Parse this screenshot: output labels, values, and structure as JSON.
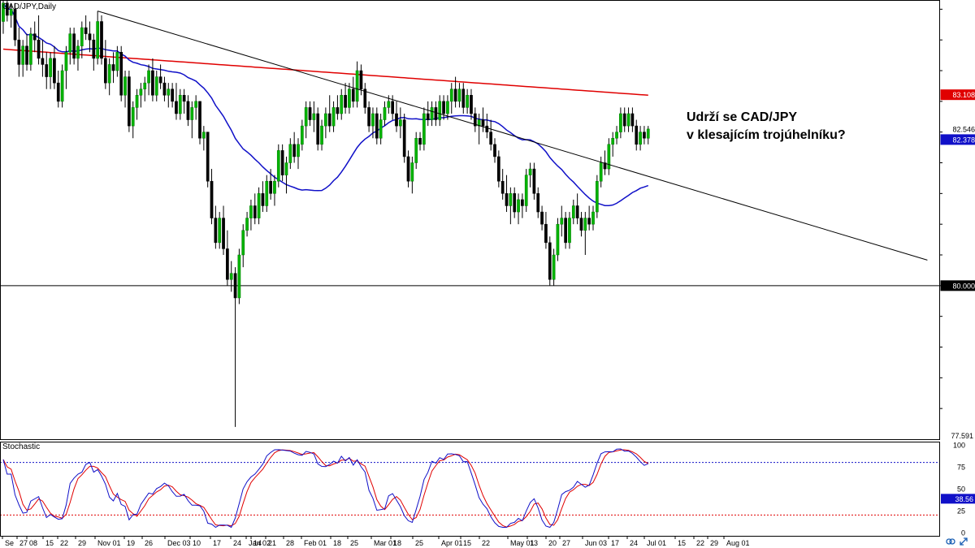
{
  "chart_data": {
    "type": "candlestick",
    "title": "CAD/JPY,Daily",
    "annotation": [
      "Udrží se CAD/JPY",
      "v klesajícím trojúhelníku?"
    ],
    "ylim": [
      77.5,
      84.65
    ],
    "yticks": [
      "77.591"
    ],
    "price_tags": [
      {
        "label": "83.108",
        "value": 83.108,
        "color": "#e00000",
        "text_color": "#ffffff"
      },
      {
        "label": "82.546",
        "value": 82.546,
        "color": "#ffffff",
        "text_color": "#000000"
      },
      {
        "label": "82.378",
        "value": 82.378,
        "color": "#1010c8",
        "text_color": "#ffffff"
      },
      {
        "label": "80.000",
        "value": 80.0,
        "color": "#000000",
        "text_color": "#ffffff"
      }
    ],
    "xticks": [
      "Se",
      "27",
      "08",
      "15",
      "22",
      "29",
      "Nov 01",
      "19",
      "26",
      "Dec 03",
      "10",
      "17",
      "24",
      "Jan 02",
      "14",
      "21",
      "28",
      "Feb 01",
      "18",
      "25",
      "Mar 01",
      "18",
      "25",
      "Apr 01",
      "15",
      "22",
      "May 01",
      "13",
      "20",
      "27",
      "Jun 03",
      "17",
      "24",
      "Jul 01",
      "15",
      "22",
      "29",
      "Aug 01"
    ],
    "horizontal_line": 80.0,
    "trendline": {
      "from": [
        24,
        84.47
      ],
      "to": [
        228,
        80.55
      ]
    },
    "candles": [
      [
        84.3,
        84.7,
        84.1,
        84.6
      ],
      [
        84.6,
        84.7,
        84.3,
        84.4
      ],
      [
        84.4,
        84.6,
        84.2,
        84.5
      ],
      [
        84.5,
        84.6,
        83.9,
        84.0
      ],
      [
        84.0,
        84.2,
        83.4,
        83.6
      ],
      [
        83.6,
        84.0,
        83.4,
        83.9
      ],
      [
        83.9,
        84.1,
        83.5,
        83.6
      ],
      [
        83.6,
        84.2,
        83.5,
        84.1
      ],
      [
        84.1,
        84.3,
        83.8,
        84.0
      ],
      [
        84.0,
        84.4,
        83.6,
        83.7
      ],
      [
        83.7,
        84.0,
        83.4,
        83.6
      ],
      [
        83.6,
        83.8,
        83.2,
        83.4
      ],
      [
        83.4,
        83.8,
        83.2,
        83.7
      ],
      [
        83.7,
        83.9,
        83.2,
        83.3
      ],
      [
        83.3,
        83.5,
        82.9,
        83.0
      ],
      [
        83.0,
        83.6,
        82.9,
        83.5
      ],
      [
        83.5,
        83.9,
        83.2,
        83.8
      ],
      [
        83.8,
        84.2,
        83.6,
        84.1
      ],
      [
        84.1,
        84.2,
        83.6,
        83.7
      ],
      [
        83.7,
        84.0,
        83.5,
        83.9
      ],
      [
        83.9,
        84.3,
        83.7,
        84.2
      ],
      [
        84.2,
        84.4,
        84.0,
        84.1
      ],
      [
        84.1,
        84.3,
        83.8,
        84.0
      ],
      [
        84.0,
        84.1,
        83.5,
        83.7
      ],
      [
        83.7,
        84.47,
        83.6,
        84.3
      ],
      [
        84.3,
        84.4,
        83.6,
        83.7
      ],
      [
        83.7,
        84.0,
        83.2,
        83.3
      ],
      [
        83.3,
        83.7,
        83.1,
        83.6
      ],
      [
        83.6,
        83.8,
        83.3,
        83.5
      ],
      [
        83.5,
        83.9,
        83.4,
        83.8
      ],
      [
        83.8,
        83.9,
        83.0,
        83.1
      ],
      [
        83.1,
        83.5,
        82.9,
        83.4
      ],
      [
        83.4,
        83.5,
        82.5,
        82.6
      ],
      [
        82.6,
        83.0,
        82.4,
        82.9
      ],
      [
        82.9,
        83.2,
        82.7,
        83.1
      ],
      [
        83.1,
        83.3,
        82.9,
        83.2
      ],
      [
        83.2,
        83.4,
        83.0,
        83.3
      ],
      [
        83.3,
        83.6,
        83.1,
        83.5
      ],
      [
        83.5,
        83.7,
        83.0,
        83.1
      ],
      [
        83.1,
        83.5,
        83.0,
        83.4
      ],
      [
        83.4,
        83.6,
        83.2,
        83.3
      ],
      [
        83.3,
        83.4,
        83.0,
        83.1
      ],
      [
        83.1,
        83.3,
        82.9,
        83.2
      ],
      [
        83.2,
        83.3,
        82.9,
        83.0
      ],
      [
        83.0,
        83.3,
        82.7,
        82.8
      ],
      [
        82.8,
        83.2,
        82.7,
        83.1
      ],
      [
        83.1,
        83.2,
        82.8,
        83.0
      ],
      [
        83.0,
        83.1,
        82.6,
        82.7
      ],
      [
        82.7,
        83.0,
        82.4,
        82.9
      ],
      [
        82.9,
        83.1,
        82.7,
        83.0
      ],
      [
        83.0,
        83.0,
        82.3,
        82.4
      ],
      [
        82.4,
        82.6,
        82.2,
        82.5
      ],
      [
        82.5,
        82.5,
        81.6,
        81.7
      ],
      [
        81.7,
        81.9,
        81.0,
        81.1
      ],
      [
        81.1,
        81.3,
        80.6,
        80.7
      ],
      [
        80.7,
        81.2,
        80.6,
        81.1
      ],
      [
        81.1,
        81.3,
        80.5,
        80.6
      ],
      [
        80.6,
        80.9,
        80.0,
        80.1
      ],
      [
        80.1,
        80.4,
        79.9,
        80.2
      ],
      [
        80.2,
        80.3,
        77.7,
        79.8
      ],
      [
        79.8,
        80.6,
        79.7,
        80.5
      ],
      [
        80.5,
        81.0,
        80.3,
        80.9
      ],
      [
        80.9,
        81.2,
        80.8,
        81.1
      ],
      [
        81.1,
        81.4,
        80.9,
        81.3
      ],
      [
        81.3,
        81.5,
        81.0,
        81.1
      ],
      [
        81.1,
        81.6,
        81.0,
        81.5
      ],
      [
        81.5,
        81.7,
        81.2,
        81.3
      ],
      [
        81.3,
        81.8,
        81.2,
        81.7
      ],
      [
        81.7,
        81.9,
        81.4,
        81.5
      ],
      [
        81.5,
        81.8,
        81.3,
        81.7
      ],
      [
        81.7,
        82.3,
        81.6,
        82.2
      ],
      [
        82.2,
        82.3,
        81.7,
        81.8
      ],
      [
        81.8,
        82.1,
        81.5,
        82.0
      ],
      [
        82.0,
        82.4,
        81.9,
        82.3
      ],
      [
        82.3,
        82.5,
        82.0,
        82.1
      ],
      [
        82.1,
        82.4,
        81.9,
        82.3
      ],
      [
        82.3,
        82.7,
        82.2,
        82.6
      ],
      [
        82.6,
        83.0,
        82.4,
        82.9
      ],
      [
        82.9,
        83.0,
        82.6,
        82.7
      ],
      [
        82.7,
        83.0,
        82.5,
        82.8
      ],
      [
        82.8,
        82.9,
        82.2,
        82.3
      ],
      [
        82.3,
        82.7,
        82.2,
        82.6
      ],
      [
        82.6,
        82.9,
        82.4,
        82.8
      ],
      [
        82.8,
        83.1,
        82.5,
        82.6
      ],
      [
        82.6,
        83.0,
        82.5,
        82.9
      ],
      [
        82.9,
        83.1,
        82.7,
        82.8
      ],
      [
        82.8,
        83.2,
        82.7,
        83.1
      ],
      [
        83.1,
        83.3,
        82.8,
        82.9
      ],
      [
        82.9,
        83.3,
        82.8,
        83.2
      ],
      [
        83.2,
        83.4,
        82.9,
        83.0
      ],
      [
        83.0,
        83.65,
        82.9,
        83.5
      ],
      [
        83.5,
        83.6,
        83.1,
        83.2
      ],
      [
        83.2,
        83.3,
        82.8,
        82.9
      ],
      [
        82.9,
        83.0,
        82.5,
        82.6
      ],
      [
        82.6,
        82.9,
        82.4,
        82.8
      ],
      [
        82.8,
        82.9,
        82.3,
        82.4
      ],
      [
        82.4,
        82.8,
        82.3,
        82.7
      ],
      [
        82.7,
        83.0,
        82.6,
        82.9
      ],
      [
        82.9,
        83.1,
        82.8,
        83.0
      ],
      [
        83.0,
        83.1,
        82.7,
        82.8
      ],
      [
        82.8,
        83.0,
        82.5,
        82.6
      ],
      [
        82.6,
        82.9,
        82.4,
        82.7
      ],
      [
        82.7,
        82.8,
        82.0,
        82.1
      ],
      [
        82.1,
        82.2,
        81.6,
        81.7
      ],
      [
        81.7,
        82.1,
        81.5,
        82.0
      ],
      [
        82.0,
        82.5,
        81.9,
        82.4
      ],
      [
        82.4,
        82.5,
        82.2,
        82.3
      ],
      [
        82.3,
        82.9,
        82.2,
        82.8
      ],
      [
        82.8,
        83.0,
        82.6,
        82.7
      ],
      [
        82.7,
        83.0,
        82.6,
        82.9
      ],
      [
        82.9,
        83.0,
        82.6,
        82.7
      ],
      [
        82.7,
        83.1,
        82.6,
        83.0
      ],
      [
        83.0,
        83.1,
        82.7,
        82.8
      ],
      [
        82.8,
        83.1,
        82.7,
        83.0
      ],
      [
        83.0,
        83.3,
        82.8,
        83.2
      ],
      [
        83.2,
        83.4,
        82.9,
        83.0
      ],
      [
        83.0,
        83.3,
        82.9,
        83.2
      ],
      [
        83.2,
        83.3,
        82.8,
        82.9
      ],
      [
        82.9,
        83.2,
        82.8,
        83.1
      ],
      [
        83.1,
        83.2,
        82.7,
        82.8
      ],
      [
        82.8,
        82.9,
        82.5,
        82.6
      ],
      [
        82.6,
        82.8,
        82.3,
        82.7
      ],
      [
        82.7,
        82.9,
        82.5,
        82.6
      ],
      [
        82.6,
        82.8,
        82.4,
        82.5
      ],
      [
        82.5,
        82.7,
        82.2,
        82.3
      ],
      [
        82.3,
        82.4,
        82.0,
        82.1
      ],
      [
        82.1,
        82.2,
        81.6,
        81.7
      ],
      [
        81.7,
        81.9,
        81.4,
        81.5
      ],
      [
        81.5,
        81.8,
        81.2,
        81.3
      ],
      [
        81.3,
        81.6,
        81.0,
        81.5
      ],
      [
        81.5,
        81.6,
        81.1,
        81.2
      ],
      [
        81.2,
        81.5,
        81.0,
        81.4
      ],
      [
        81.4,
        81.5,
        81.1,
        81.3
      ],
      [
        81.3,
        81.9,
        81.2,
        81.8
      ],
      [
        81.8,
        82.0,
        81.6,
        81.9
      ],
      [
        81.9,
        82.0,
        81.4,
        81.5
      ],
      [
        81.5,
        81.6,
        81.1,
        81.2
      ],
      [
        81.2,
        81.3,
        80.9,
        81.0
      ],
      [
        81.0,
        81.2,
        80.6,
        80.7
      ],
      [
        80.7,
        80.8,
        80.0,
        80.1
      ],
      [
        80.1,
        80.6,
        80.0,
        80.5
      ],
      [
        80.5,
        81.1,
        80.4,
        81.0
      ],
      [
        81.0,
        81.3,
        80.8,
        81.1
      ],
      [
        81.1,
        81.2,
        80.6,
        80.7
      ],
      [
        80.7,
        81.2,
        80.6,
        81.1
      ],
      [
        81.1,
        81.4,
        81.0,
        81.3
      ],
      [
        81.3,
        81.5,
        81.0,
        81.1
      ],
      [
        81.1,
        81.2,
        80.8,
        80.9
      ],
      [
        80.9,
        81.2,
        80.5,
        81.1
      ],
      [
        81.1,
        81.3,
        80.9,
        81.0
      ],
      [
        81.0,
        81.3,
        80.9,
        81.2
      ],
      [
        81.2,
        81.8,
        81.1,
        81.7
      ],
      [
        81.7,
        82.1,
        81.6,
        82.0
      ],
      [
        82.0,
        82.2,
        81.8,
        81.9
      ],
      [
        81.9,
        82.4,
        81.8,
        82.3
      ],
      [
        82.3,
        82.5,
        82.1,
        82.4
      ],
      [
        82.4,
        82.6,
        82.3,
        82.5
      ],
      [
        82.5,
        82.9,
        82.4,
        82.8
      ],
      [
        82.8,
        82.9,
        82.5,
        82.6
      ],
      [
        82.6,
        82.9,
        82.5,
        82.8
      ],
      [
        82.8,
        82.9,
        82.5,
        82.6
      ],
      [
        82.6,
        82.7,
        82.2,
        82.3
      ],
      [
        82.3,
        82.6,
        82.2,
        82.5
      ],
      [
        82.5,
        82.6,
        82.3,
        82.4
      ],
      [
        82.4,
        82.6,
        82.3,
        82.55
      ]
    ],
    "sma_100_color": "#1010c8",
    "sma_200_color": "#e00000",
    "stochastic": {
      "title": "Stochastic",
      "ylim": [
        0,
        100
      ],
      "yticks": [
        "100",
        "75",
        "50",
        "25",
        "0"
      ],
      "levels": [
        80,
        20
      ],
      "value_tag": "38.56",
      "k_color": "#1010c8",
      "d_color": "#e00000"
    },
    "background": "#ffffff"
  }
}
